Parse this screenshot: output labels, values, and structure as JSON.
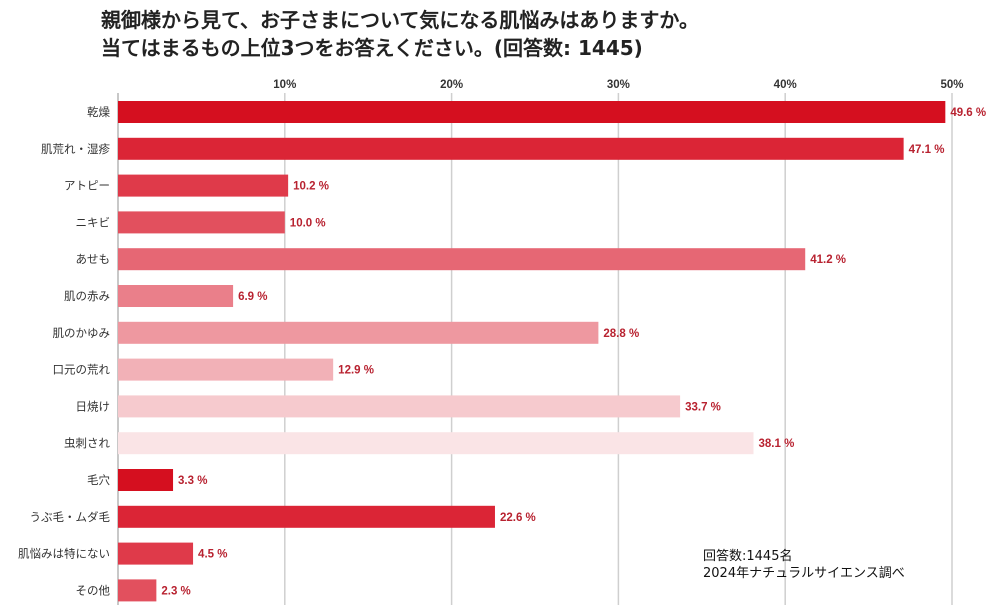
{
  "chart_data": {
    "type": "bar",
    "orientation": "horizontal",
    "title_lines": [
      "親御様から見て、お子さまについて気になる肌悩みはありますか。",
      "当てはまるもの上位3つをお答えください。(回答数: 1445)"
    ],
    "xlabel": "",
    "ylabel": "",
    "xlim": [
      0,
      50
    ],
    "x_ticks": [
      10,
      20,
      30,
      40,
      50
    ],
    "x_tick_labels": [
      "10%",
      "20%",
      "30%",
      "40%",
      "50%"
    ],
    "grid": true,
    "legend": "none",
    "categories": [
      "乾燥",
      "肌荒れ・湿疹",
      "アトピー",
      "ニキビ",
      "あせも",
      "肌の赤み",
      "肌のかゆみ",
      "口元の荒れ",
      "日焼け",
      "虫刺され",
      "毛穴",
      "うぶ毛・ムダ毛",
      "肌悩みは特にない",
      "その他"
    ],
    "values": [
      49.6,
      47.1,
      10.2,
      10.0,
      41.2,
      6.9,
      28.8,
      12.9,
      33.7,
      38.1,
      3.3,
      22.6,
      4.5,
      2.3
    ],
    "value_labels": [
      "49.6 %",
      "47.1 %",
      "10.2 %",
      "10.0 %",
      "41.2 %",
      "6.9 %",
      "28.8 %",
      "12.9 %",
      "33.7 %",
      "38.1 %",
      "3.3 %",
      "22.6 %",
      "4.5 %",
      "2.3 %"
    ],
    "bar_colors": [
      "#d50f1f",
      "#db2536",
      "#df3a4a",
      "#e2505e",
      "#e66774",
      "#ea7f8a",
      "#ee98a0",
      "#f2b1b7",
      "#f6cace",
      "#fae4e6",
      "#d50f1f",
      "#db2536",
      "#df3a4a",
      "#e2505e"
    ],
    "value_label_color": "#b82230",
    "grid_color": "#cfcfcf"
  },
  "footnote": {
    "line1": "回答数:1445名",
    "line2": "2024年ナチュラルサイエンス調べ"
  }
}
